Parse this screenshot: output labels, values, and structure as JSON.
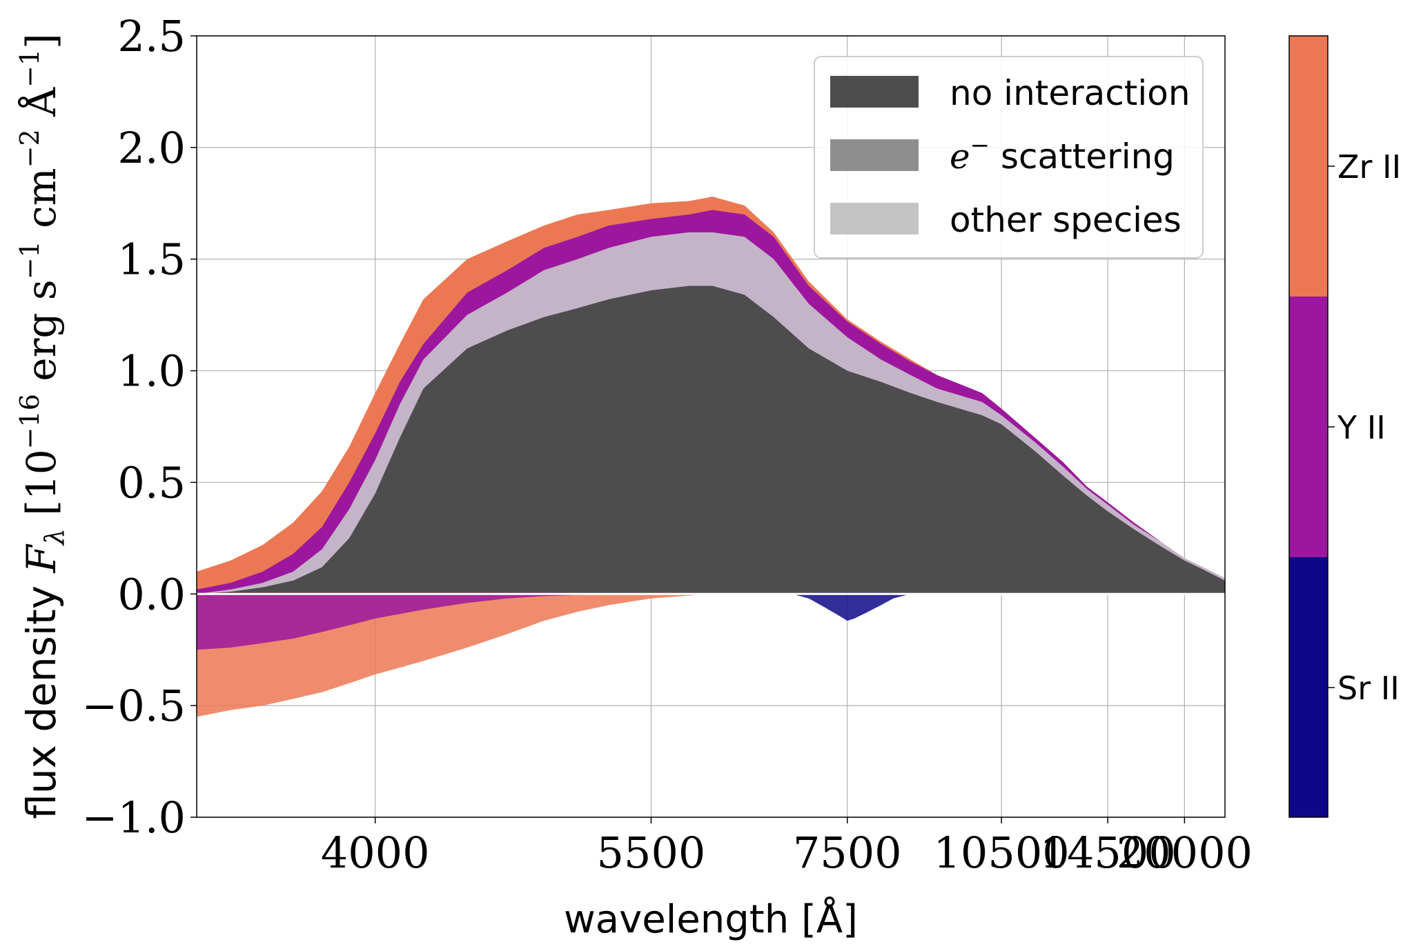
{
  "chart_data": {
    "type": "area",
    "xlabel": "wavelength [Å]",
    "ylabel_prefix": "flux density ",
    "ylabel_symbol": "F",
    "ylabel_symbol_sub": "λ",
    "ylabel_units": " [10",
    "ylabel_exp1": "−16",
    "ylabel_units2": " erg s",
    "ylabel_exp2": "−1",
    "ylabel_units3": " cm",
    "ylabel_exp3": "−2",
    "ylabel_units4": " Å",
    "ylabel_exp4": "−1",
    "ylabel_units5": "]",
    "x_scale": "reciprocal",
    "xlim": [
      3400,
      25000
    ],
    "ylim": [
      -1.0,
      2.5
    ],
    "grid": true,
    "x_ticks": [
      4000,
      5500,
      7500,
      10500,
      14500,
      20000
    ],
    "x_tick_labels": [
      "4000",
      "5500",
      "7500",
      "10500",
      "14500",
      "20000"
    ],
    "y_ticks": [
      -1.0,
      -0.5,
      0.0,
      0.5,
      1.0,
      1.5,
      2.0,
      2.5
    ],
    "y_tick_labels": [
      "−1.0",
      "−0.5",
      "0.0",
      "0.5",
      "1.0",
      "1.5",
      "2.0",
      "2.5"
    ],
    "legend": {
      "placement": "top-right",
      "entries": [
        {
          "name": "no interaction",
          "color": "#4d4d4d"
        },
        {
          "name_math": "e",
          "name_sup": "−",
          "name_rest": " scattering",
          "color": "#8e8e8e"
        },
        {
          "name": "other species",
          "color": "#c4c4c4"
        }
      ]
    },
    "colorbar": {
      "placement": "right",
      "entries": [
        {
          "label": "Zr II",
          "color": "#ec7853"
        },
        {
          "label": "Y II",
          "color": "#9c179e"
        },
        {
          "label": "Sr II",
          "color": "#0d0887"
        }
      ]
    },
    "series": [
      {
        "name": "no interaction",
        "x": [
          3400,
          3500,
          3600,
          3700,
          3800,
          3900,
          4000,
          4100,
          4200,
          4400,
          4600,
          4800,
          5000,
          5200,
          5500,
          5800,
          6000,
          6300,
          6600,
          7000,
          7500,
          8000,
          8500,
          9000,
          10000,
          10500,
          11500,
          12500,
          13500,
          14500,
          16000,
          18000,
          20000,
          22000,
          25000
        ],
        "values": [
          0.0,
          0.01,
          0.03,
          0.06,
          0.12,
          0.25,
          0.45,
          0.7,
          0.92,
          1.1,
          1.18,
          1.24,
          1.28,
          1.32,
          1.36,
          1.38,
          1.38,
          1.34,
          1.24,
          1.1,
          1.0,
          0.95,
          0.9,
          0.86,
          0.8,
          0.76,
          0.64,
          0.53,
          0.44,
          0.37,
          0.29,
          0.21,
          0.15,
          0.11,
          0.06
        ]
      },
      {
        "name": "other species",
        "x": [
          3400,
          3500,
          3600,
          3700,
          3800,
          3900,
          4000,
          4100,
          4200,
          4400,
          4600,
          4800,
          5000,
          5200,
          5500,
          5800,
          6000,
          6300,
          6600,
          7000,
          7500,
          8000,
          8500,
          9000,
          10000,
          10500,
          11500,
          12500,
          13500,
          14500,
          16000,
          18000,
          20000,
          22000,
          25000
        ],
        "values": [
          0.0,
          0.02,
          0.05,
          0.1,
          0.2,
          0.38,
          0.6,
          0.85,
          1.05,
          1.25,
          1.35,
          1.45,
          1.5,
          1.55,
          1.6,
          1.62,
          1.62,
          1.6,
          1.5,
          1.3,
          1.15,
          1.05,
          0.98,
          0.92,
          0.86,
          0.8,
          0.68,
          0.57,
          0.47,
          0.4,
          0.31,
          0.23,
          0.16,
          0.12,
          0.07
        ]
      },
      {
        "name": "Y II",
        "x": [
          3400,
          3500,
          3600,
          3700,
          3800,
          3900,
          4000,
          4100,
          4200,
          4400,
          4600,
          4800,
          5000,
          5200,
          5500,
          5800,
          6000,
          6300,
          6600,
          7000,
          7500,
          8000,
          8500,
          9000,
          10000,
          10500,
          11500,
          12500,
          13500,
          14500,
          16000,
          18000,
          20000,
          22000,
          25000
        ],
        "values": [
          0.02,
          0.05,
          0.1,
          0.18,
          0.3,
          0.5,
          0.72,
          0.95,
          1.12,
          1.35,
          1.45,
          1.55,
          1.6,
          1.65,
          1.68,
          1.7,
          1.72,
          1.7,
          1.6,
          1.38,
          1.22,
          1.12,
          1.04,
          0.98,
          0.9,
          0.83,
          0.7,
          0.59,
          0.48,
          0.41,
          0.32,
          0.23,
          0.16,
          0.12,
          0.07
        ]
      },
      {
        "name": "Zr II",
        "x": [
          3400,
          3500,
          3600,
          3700,
          3800,
          3900,
          4000,
          4100,
          4200,
          4400,
          4600,
          4800,
          5000,
          5200,
          5500,
          5800,
          6000,
          6300,
          6600,
          7000,
          7500,
          8000,
          8500,
          9000,
          10000,
          10500,
          11500,
          12500,
          13500,
          14500,
          16000,
          18000,
          20000,
          22000,
          25000
        ],
        "values": [
          0.1,
          0.15,
          0.22,
          0.32,
          0.46,
          0.66,
          0.9,
          1.12,
          1.32,
          1.5,
          1.58,
          1.65,
          1.7,
          1.72,
          1.75,
          1.76,
          1.78,
          1.74,
          1.62,
          1.4,
          1.23,
          1.13,
          1.05,
          0.98,
          0.9,
          0.83,
          0.7,
          0.59,
          0.48,
          0.41,
          0.32,
          0.23,
          0.16,
          0.12,
          0.07
        ]
      },
      {
        "name": "Zr II (absorbed)",
        "x": [
          3400,
          3500,
          3600,
          3700,
          3800,
          3900,
          4000,
          4100,
          4200,
          4400,
          4600,
          4800,
          5000,
          5200,
          5500,
          6000
        ],
        "values": [
          -0.55,
          -0.52,
          -0.5,
          -0.47,
          -0.44,
          -0.4,
          -0.36,
          -0.33,
          -0.3,
          -0.24,
          -0.18,
          -0.12,
          -0.08,
          -0.05,
          -0.02,
          0.0
        ]
      },
      {
        "name": "Y II (absorbed)",
        "x": [
          3400,
          3500,
          3600,
          3700,
          3800,
          3900,
          4000,
          4200,
          4400,
          4600,
          4800,
          5000,
          5200
        ],
        "values": [
          -0.25,
          -0.24,
          -0.22,
          -0.2,
          -0.17,
          -0.14,
          -0.11,
          -0.07,
          -0.04,
          -0.02,
          -0.01,
          -0.005,
          0.0
        ]
      },
      {
        "name": "Sr II (absorbed)",
        "x": [
          6800,
          7000,
          7200,
          7400,
          7500,
          7600,
          7800,
          8000,
          8200,
          8500
        ],
        "values": [
          0.0,
          -0.02,
          -0.06,
          -0.1,
          -0.12,
          -0.11,
          -0.08,
          -0.05,
          -0.02,
          0.0
        ]
      }
    ]
  }
}
